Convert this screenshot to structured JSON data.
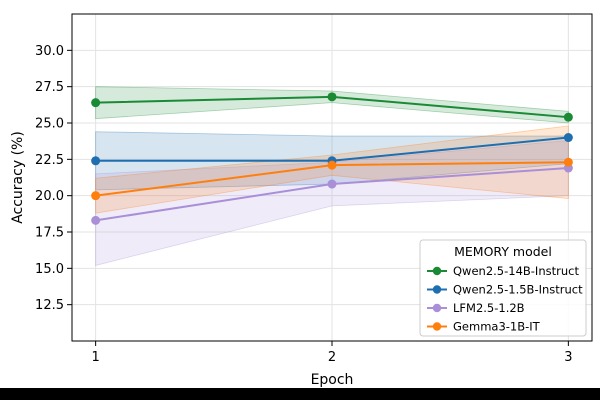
{
  "chart_data": {
    "type": "line",
    "x": [
      1,
      2,
      3
    ],
    "xlabel": "Epoch",
    "ylabel": "Accuracy (%)",
    "xlim": [
      0.9,
      3.1
    ],
    "ylim": [
      10.0,
      32.5
    ],
    "xticks": [
      "1",
      "2",
      "3"
    ],
    "yticks": [
      "12.5",
      "15.0",
      "17.5",
      "20.0",
      "22.5",
      "25.0",
      "27.5",
      "30.0"
    ],
    "grid": true,
    "legend": {
      "title": "MEMORY model",
      "placement": "lower-right"
    },
    "series": [
      {
        "name": "Qwen2.5-14B-Instruct",
        "color": "#1a8a35",
        "values": [
          26.4,
          26.8,
          25.4
        ],
        "band_low": [
          25.3,
          26.4,
          25.0
        ],
        "band_high": [
          27.5,
          27.2,
          25.8
        ]
      },
      {
        "name": "Qwen2.5-1.5B-Instruct",
        "color": "#1f6fb0",
        "values": [
          22.4,
          22.4,
          24.0
        ],
        "band_low": [
          20.4,
          20.8,
          22.2
        ],
        "band_high": [
          24.4,
          24.1,
          24.1
        ]
      },
      {
        "name": "LFM2.5-1.2B",
        "color": "#a98fd8",
        "values": [
          18.3,
          20.8,
          21.9
        ],
        "band_low": [
          15.2,
          19.3,
          20.0
        ],
        "band_high": [
          21.5,
          22.3,
          23.8
        ]
      },
      {
        "name": "Gemma3-1B-IT",
        "color": "#ff7f0e",
        "values": [
          20.0,
          22.1,
          22.3
        ],
        "band_low": [
          18.8,
          21.4,
          19.8
        ],
        "band_high": [
          21.2,
          22.8,
          24.8
        ]
      }
    ]
  }
}
